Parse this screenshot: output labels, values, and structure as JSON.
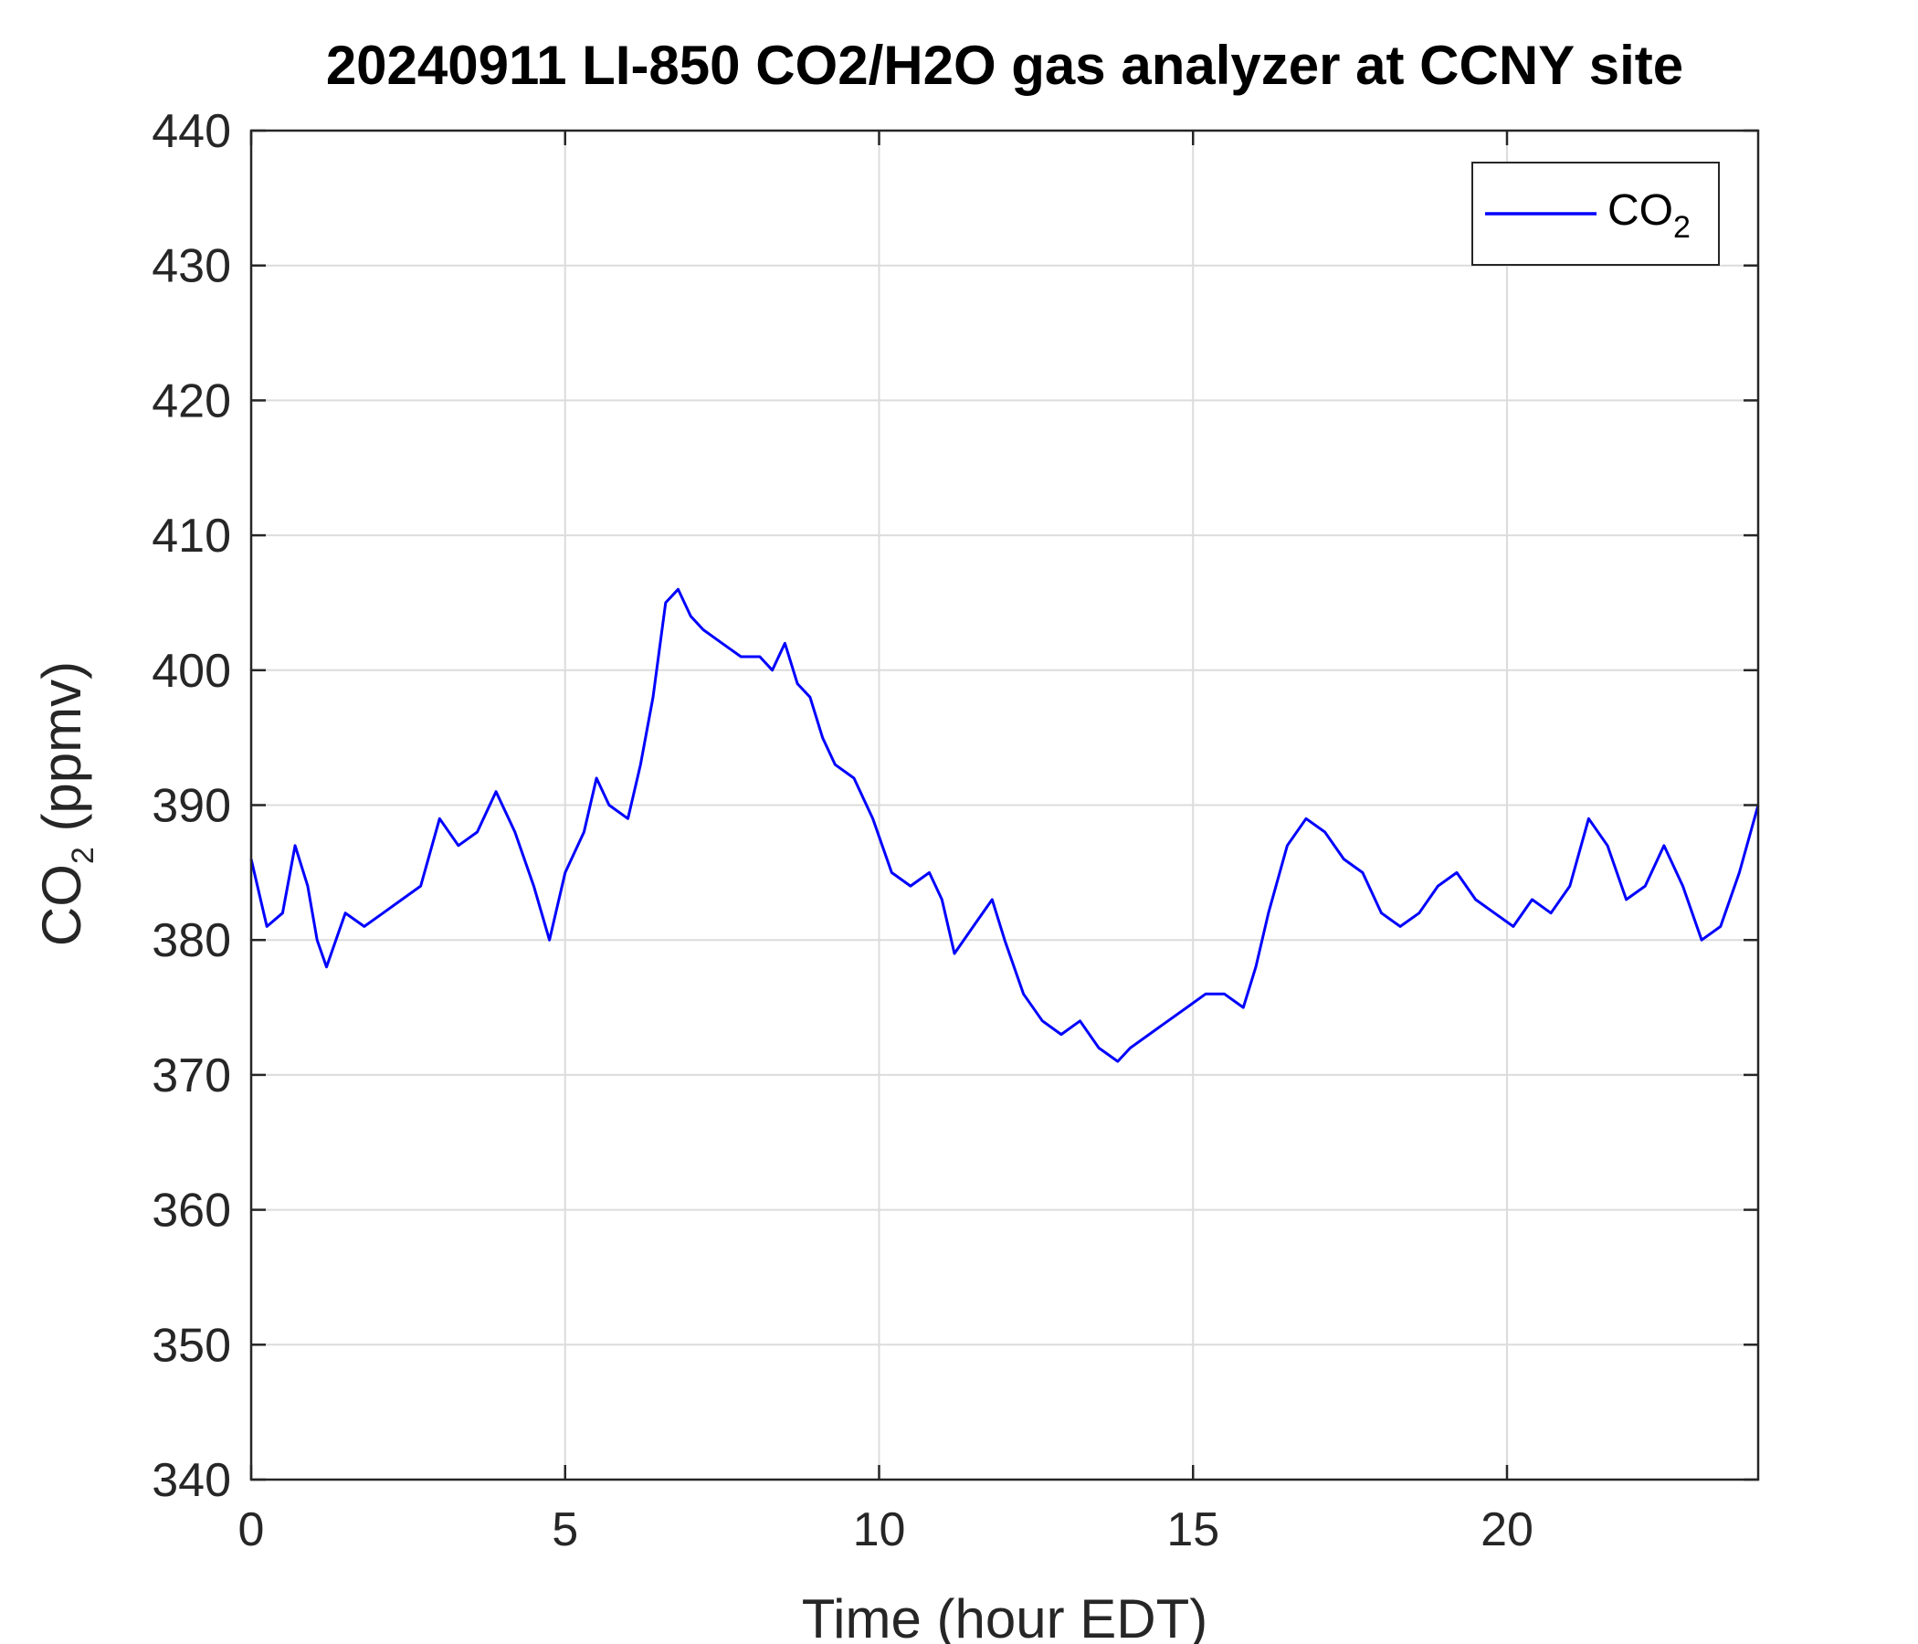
{
  "chart_data": {
    "type": "line",
    "title": "20240911 LI-850 CO2/H2O gas analyzer at CCNY site",
    "xlabel": "Time (hour EDT)",
    "ylabel_main": "CO",
    "ylabel_sub": "2",
    "ylabel_rest": " (ppmv)",
    "xlim": [
      0,
      24
    ],
    "ylim": [
      340,
      440
    ],
    "xticks": [
      0,
      5,
      10,
      15,
      20
    ],
    "yticks": [
      340,
      350,
      360,
      370,
      380,
      390,
      400,
      410,
      420,
      430,
      440
    ],
    "grid": true,
    "legend_position": "top-right",
    "series": [
      {
        "name_main": "CO",
        "name_sub": "2",
        "color": "#0000ff",
        "x": [
          0.0,
          0.25,
          0.5,
          0.7,
          0.9,
          1.05,
          1.2,
          1.5,
          1.8,
          2.1,
          2.4,
          2.7,
          3.0,
          3.3,
          3.6,
          3.9,
          4.2,
          4.5,
          4.75,
          5.0,
          5.3,
          5.5,
          5.7,
          6.0,
          6.2,
          6.4,
          6.6,
          6.8,
          7.0,
          7.2,
          7.5,
          7.8,
          8.1,
          8.3,
          8.5,
          8.7,
          8.9,
          9.1,
          9.3,
          9.6,
          9.9,
          10.2,
          10.5,
          10.8,
          11.0,
          11.2,
          11.5,
          11.8,
          12.0,
          12.3,
          12.6,
          12.9,
          13.2,
          13.5,
          13.8,
          14.0,
          14.3,
          14.6,
          14.9,
          15.2,
          15.5,
          15.8,
          16.0,
          16.2,
          16.5,
          16.8,
          17.1,
          17.4,
          17.7,
          18.0,
          18.3,
          18.6,
          18.9,
          19.2,
          19.5,
          19.8,
          20.1,
          20.4,
          20.7,
          21.0,
          21.3,
          21.6,
          21.9,
          22.2,
          22.5,
          22.8,
          23.1,
          23.4,
          23.7,
          24.0
        ],
        "y": [
          386,
          381,
          382,
          387,
          384,
          380,
          378,
          382,
          381,
          382,
          383,
          384,
          389,
          387,
          388,
          391,
          388,
          384,
          380,
          385,
          388,
          392,
          390,
          389,
          393,
          398,
          405,
          406,
          404,
          403,
          402,
          401,
          401,
          400,
          402,
          399,
          398,
          395,
          393,
          392,
          389,
          385,
          384,
          385,
          383,
          379,
          381,
          383,
          380,
          376,
          374,
          373,
          374,
          372,
          371,
          372,
          373,
          374,
          375,
          376,
          376,
          375,
          378,
          382,
          387,
          389,
          388,
          386,
          385,
          382,
          381,
          382,
          384,
          385,
          383,
          382,
          381,
          383,
          382,
          384,
          389,
          387,
          383,
          384,
          387,
          384,
          380,
          381,
          385,
          390
        ]
      }
    ]
  }
}
